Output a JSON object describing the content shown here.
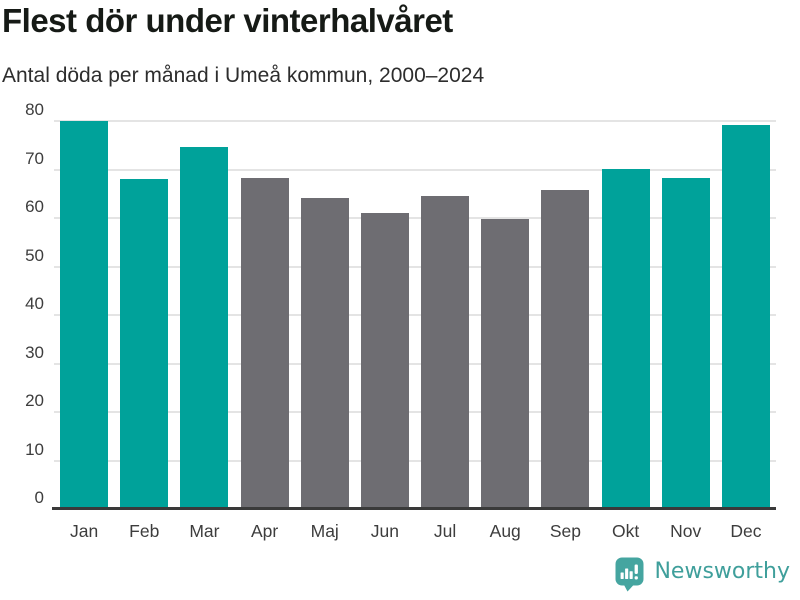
{
  "header": {
    "title": "Flest dör under vinterhalvåret",
    "subtitle": "Antal döda per månad i Umeå kommun, 2000–2024"
  },
  "chart_data": {
    "type": "bar",
    "title": "Flest dör under vinterhalvåret",
    "subtitle": "Antal döda per månad i Umeå kommun, 2000–2024",
    "categories": [
      "Jan",
      "Feb",
      "Mar",
      "Apr",
      "Maj",
      "Jun",
      "Jul",
      "Aug",
      "Sep",
      "Okt",
      "Nov",
      "Dec"
    ],
    "values": [
      80,
      68,
      74.7,
      68.2,
      64.1,
      61.1,
      64.6,
      59.8,
      65.8,
      70.2,
      68.3,
      79.2
    ],
    "bar_colors": [
      "#00a29a",
      "#00a29a",
      "#00a29a",
      "#6e6d72",
      "#6e6d72",
      "#6e6d72",
      "#6e6d72",
      "#6e6d72",
      "#6e6d72",
      "#00a29a",
      "#00a29a",
      "#00a29a"
    ],
    "highlighted_categories": [
      "Jan",
      "Feb",
      "Mar",
      "Okt",
      "Nov",
      "Dec"
    ],
    "highlight_color": "#00a29a",
    "default_color": "#6e6d72",
    "xlabel": "",
    "ylabel": "",
    "ylim": [
      0,
      80
    ],
    "yticks": [
      0,
      10,
      20,
      30,
      40,
      50,
      60,
      70,
      80
    ],
    "grid": true,
    "legend": false
  },
  "footer": {
    "brand": "Newsworthy",
    "brand_color": "#3f9f9b",
    "logo_icon": "bar-chart-speech-bubble-icon",
    "logo_color": "#45a5a0"
  },
  "colors": {
    "background": "#ffffff",
    "gridline": "#e4e4e4",
    "axis_line": "#3a3a3a",
    "axis_text": "#3d3d3d",
    "title_text": "#161a16",
    "subtitle_text": "#2d2d2d"
  }
}
